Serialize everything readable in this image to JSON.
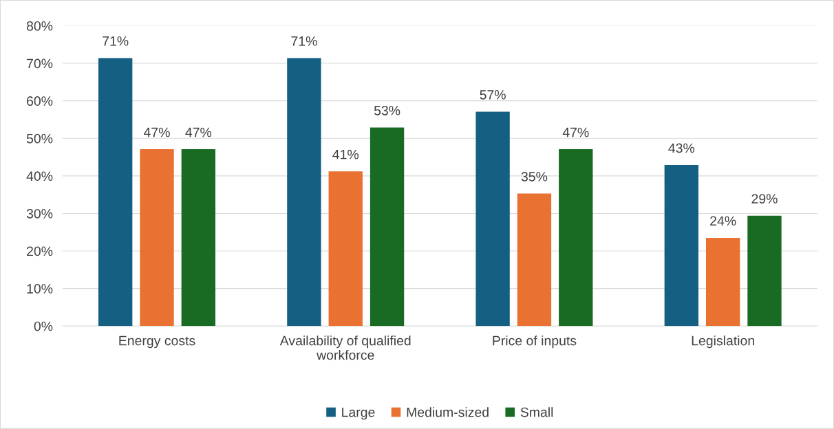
{
  "chart_data": {
    "type": "bar",
    "categories": [
      "Energy costs",
      "Availability of qualified workforce",
      "Price of inputs",
      "Legislation"
    ],
    "series": [
      {
        "name": "Large",
        "color": "#156082",
        "values": [
          71.4,
          71.4,
          57.1,
          42.9
        ],
        "value_labels": [
          "71%",
          "71%",
          "57%",
          "43%"
        ]
      },
      {
        "name": "Medium-sized",
        "color": "#e97132",
        "values": [
          47.1,
          41.2,
          35.3,
          23.5
        ],
        "value_labels": [
          "47%",
          "41%",
          "35%",
          "24%"
        ]
      },
      {
        "name": "Small",
        "color": "#196b24",
        "values": [
          47.1,
          52.9,
          47.1,
          29.4
        ],
        "value_labels": [
          "47%",
          "53%",
          "47%",
          "29%"
        ]
      }
    ],
    "ylim": [
      0,
      80
    ],
    "yticks": [
      {
        "value": 0,
        "label": "0%"
      },
      {
        "value": 10,
        "label": "10%"
      },
      {
        "value": 20,
        "label": "20%"
      },
      {
        "value": 30,
        "label": "30%"
      },
      {
        "value": 40,
        "label": "40%"
      },
      {
        "value": 50,
        "label": "50%"
      },
      {
        "value": 60,
        "label": "60%"
      },
      {
        "value": 70,
        "label": "70%"
      },
      {
        "value": 80,
        "label": "80%"
      }
    ],
    "grid": "y",
    "legend": "bottom"
  }
}
